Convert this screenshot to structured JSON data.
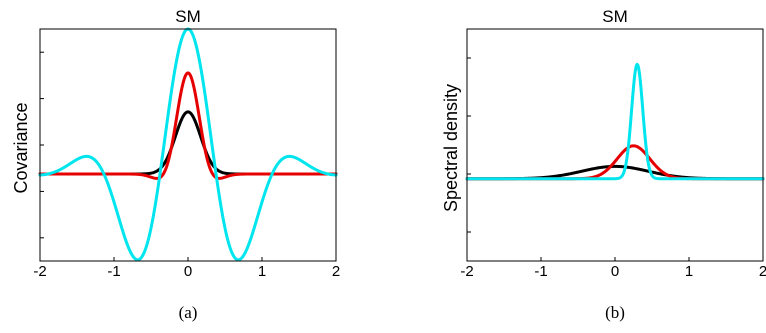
{
  "chart_data": [
    {
      "type": "line",
      "title": "SM",
      "ylabel": "Covariance",
      "xlabel": "",
      "caption": "(a)",
      "xlim": [
        -2,
        2
      ],
      "ylim": [
        -1.05,
        1.75
      ],
      "xticks": [
        "-2",
        "-1",
        "0",
        "1",
        "2"
      ],
      "ytick_count": 5,
      "series": [
        {
          "color": "#000000",
          "curve": "gauss_cos",
          "amplitude": 0.75,
          "sigma": 0.17,
          "freq": 0.0
        },
        {
          "color": "#e60000",
          "curve": "gauss_cos",
          "amplitude": 1.22,
          "sigma": 0.2,
          "freq": 0.75
        },
        {
          "color": "#00e5ee",
          "curve": "gauss_cos",
          "amplitude": 1.75,
          "sigma": 0.7,
          "freq": 0.66
        }
      ]
    },
    {
      "type": "line",
      "title": "SM",
      "ylabel": "Spectral density",
      "xlabel": "",
      "caption": "(b)",
      "xlim": [
        -2,
        2
      ],
      "ylim": [
        -1.0,
        1.82
      ],
      "xticks": [
        "-2",
        "-1",
        "0",
        "1",
        "2"
      ],
      "ytick_count": 4,
      "series": [
        {
          "color": "#000000",
          "curve": "gauss",
          "peak": 0.15,
          "center": 0.0,
          "sigma": 0.45
        },
        {
          "color": "#e60000",
          "curve": "gauss",
          "peak": 0.4,
          "center": 0.25,
          "sigma": 0.22
        },
        {
          "color": "#00e5ee",
          "curve": "gauss",
          "peak": 1.39,
          "center": 0.3,
          "sigma": 0.075
        }
      ]
    }
  ]
}
